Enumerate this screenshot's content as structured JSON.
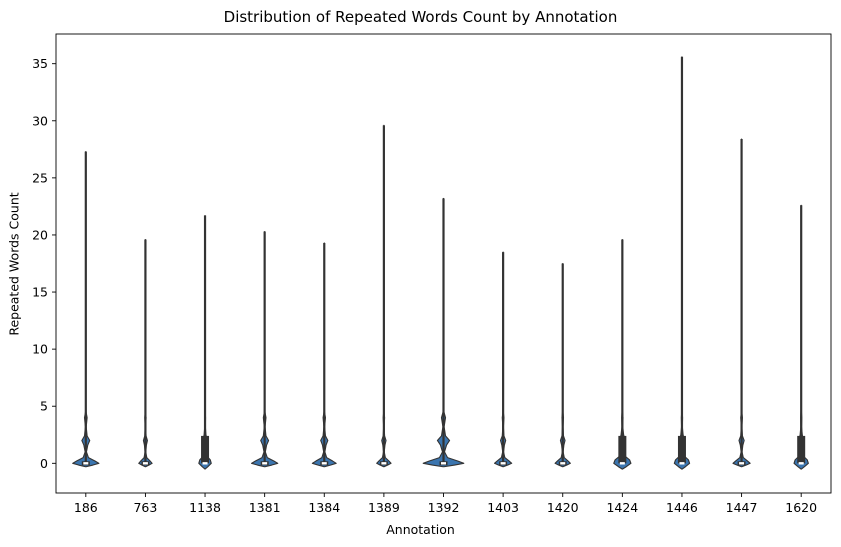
{
  "chart_data": {
    "type": "violin",
    "title": "Distribution of Repeated Words Count by Annotation",
    "xlabel": "Annotation",
    "ylabel": "Repeated Words Count",
    "ylim": [
      -2.6,
      37.6
    ],
    "yticks": [
      0,
      5,
      10,
      15,
      20,
      25,
      30,
      35
    ],
    "grid": false,
    "legend": "none",
    "color": "#3b75af",
    "edge_color": "#333333",
    "categories": [
      "186",
      "763",
      "1138",
      "1381",
      "1384",
      "1389",
      "1392",
      "1403",
      "1420",
      "1424",
      "1446",
      "1447",
      "1620"
    ],
    "max": [
      27.3,
      19.6,
      21.7,
      20.3,
      19.3,
      29.6,
      23.2,
      18.5,
      17.5,
      19.6,
      35.6,
      28.4,
      22.6
    ],
    "min": [
      0,
      0,
      0,
      0,
      0,
      0,
      0,
      0,
      0,
      0,
      0,
      0,
      0
    ],
    "q1": [
      0,
      0,
      0,
      0,
      0,
      0,
      0,
      0,
      0,
      0,
      0,
      0,
      0
    ],
    "median": [
      0,
      0,
      0,
      0,
      0,
      0,
      0,
      0,
      0,
      0,
      0,
      0,
      0
    ],
    "q3": [
      0,
      0,
      2.4,
      0,
      0,
      0,
      0,
      0,
      0,
      2.4,
      2.4,
      0,
      2.4
    ],
    "density_width": [
      0.55,
      0.28,
      0.26,
      0.55,
      0.5,
      0.3,
      0.85,
      0.36,
      0.32,
      0.36,
      0.32,
      0.36,
      0.3
    ]
  }
}
